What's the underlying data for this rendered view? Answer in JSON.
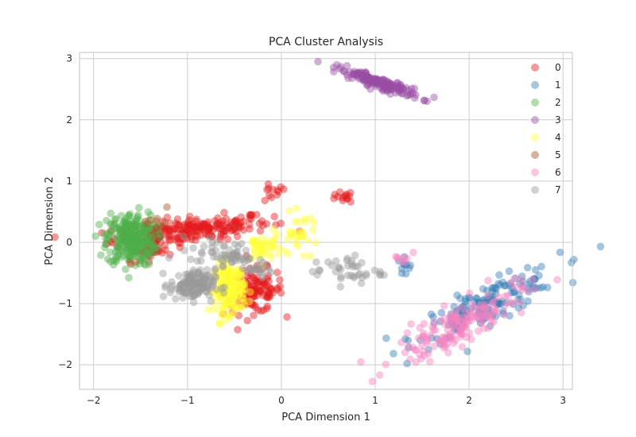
{
  "chart_data": {
    "type": "scatter",
    "title": "PCA Cluster Analysis",
    "xlabel": "PCA Dimension 1",
    "ylabel": "PCA Dimension 2",
    "xlim": [
      -2.15,
      3.1
    ],
    "ylim": [
      -2.4,
      3.1
    ],
    "x_ticks": [
      -2,
      -1,
      0,
      1,
      2,
      3
    ],
    "x_tick_labels": [
      "−2",
      "−1",
      "0",
      "1",
      "2",
      "3"
    ],
    "y_ticks": [
      -2,
      -1,
      0,
      1,
      2,
      3
    ],
    "y_tick_labels": [
      "−2",
      "−1",
      "0",
      "1",
      "2",
      "3"
    ],
    "grid": true,
    "legend_position": "upper right",
    "marker_alpha": 0.45,
    "series": [
      {
        "name": "0",
        "color": "#e41a1c",
        "clusters": [
          {
            "cx": -0.95,
            "cy": 0.2,
            "sx": 0.42,
            "sy": 0.12,
            "rho": 0.55,
            "n": 220
          },
          {
            "cx": -1.35,
            "cy": -0.05,
            "sx": 0.1,
            "sy": 0.12,
            "rho": 0.2,
            "n": 40
          },
          {
            "cx": -0.3,
            "cy": -0.8,
            "sx": 0.16,
            "sy": 0.18,
            "rho": 0.1,
            "n": 130
          },
          {
            "cx": -0.1,
            "cy": 0.8,
            "sx": 0.08,
            "sy": 0.08,
            "rho": 0.0,
            "n": 12
          },
          {
            "cx": 0.65,
            "cy": 0.72,
            "sx": 0.06,
            "sy": 0.05,
            "rho": 0.2,
            "n": 14
          }
        ]
      },
      {
        "name": "1",
        "color": "#377eb8",
        "clusters": [
          {
            "cx": 2.2,
            "cy": -1.0,
            "sx": 0.38,
            "sy": 0.3,
            "rho": 0.85,
            "n": 160
          },
          {
            "cx": 1.3,
            "cy": -0.4,
            "sx": 0.05,
            "sy": 0.1,
            "rho": 0.0,
            "n": 10
          }
        ]
      },
      {
        "name": "2",
        "color": "#4daf4a",
        "clusters": [
          {
            "cx": -1.6,
            "cy": 0.05,
            "sx": 0.13,
            "sy": 0.22,
            "rho": 0.0,
            "n": 260
          }
        ]
      },
      {
        "name": "3",
        "color": "#984ea3",
        "clusters": [
          {
            "cx": 1.05,
            "cy": 2.6,
            "sx": 0.22,
            "sy": 0.12,
            "rho": -0.92,
            "n": 170
          }
        ]
      },
      {
        "name": "4",
        "color": "#ffff33",
        "clusters": [
          {
            "cx": -0.55,
            "cy": -0.75,
            "sx": 0.08,
            "sy": 0.2,
            "rho": 0.0,
            "n": 190
          },
          {
            "cx": -0.2,
            "cy": -0.1,
            "sx": 0.1,
            "sy": 0.12,
            "rho": 0.0,
            "n": 40
          },
          {
            "cx": 0.2,
            "cy": 0.15,
            "sx": 0.1,
            "sy": 0.15,
            "rho": 0.0,
            "n": 30
          }
        ]
      },
      {
        "name": "5",
        "color": "#a65628",
        "clusters": [
          {
            "cx": -1.3,
            "cy": 0.3,
            "sx": 0.05,
            "sy": 0.12,
            "rho": 0.0,
            "n": 8
          },
          {
            "cx": -1.6,
            "cy": -0.35,
            "sx": 0.05,
            "sy": 0.03,
            "rho": 0.0,
            "n": 3
          }
        ]
      },
      {
        "name": "6",
        "color": "#f781bf",
        "clusters": [
          {
            "cx": 1.9,
            "cy": -1.35,
            "sx": 0.35,
            "sy": 0.32,
            "rho": 0.85,
            "n": 160
          },
          {
            "cx": 1.3,
            "cy": -0.25,
            "sx": 0.05,
            "sy": 0.07,
            "rho": 0.0,
            "n": 8
          }
        ]
      },
      {
        "name": "7",
        "color": "#999999",
        "clusters": [
          {
            "cx": -0.95,
            "cy": -0.7,
            "sx": 0.12,
            "sy": 0.12,
            "rho": 0.0,
            "n": 130
          },
          {
            "cx": -0.6,
            "cy": -0.2,
            "sx": 0.18,
            "sy": 0.12,
            "rho": -0.3,
            "n": 60
          },
          {
            "cx": 0.7,
            "cy": -0.45,
            "sx": 0.2,
            "sy": 0.12,
            "rho": -0.2,
            "n": 40
          },
          {
            "cx": -0.15,
            "cy": -0.45,
            "sx": 0.1,
            "sy": 0.05,
            "rho": 0.0,
            "n": 15
          }
        ]
      }
    ]
  }
}
